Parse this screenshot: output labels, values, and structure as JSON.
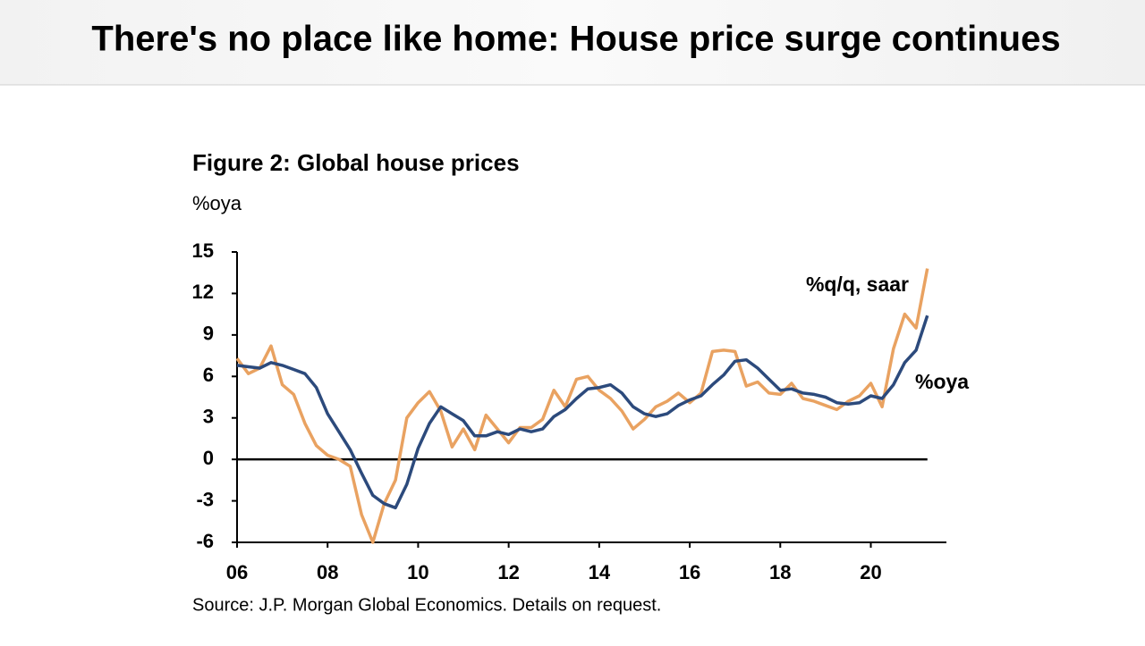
{
  "page_title": "There's no place like home: House price surge continues",
  "chart_data": {
    "type": "line",
    "title": "Figure 2: Global house prices",
    "ylabel": "%oya",
    "source": "Source: J.P. Morgan Global Economics. Details on request.",
    "x": [
      2006,
      2006.25,
      2006.5,
      2006.75,
      2007,
      2007.25,
      2007.5,
      2007.75,
      2008,
      2008.25,
      2008.5,
      2008.75,
      2009,
      2009.25,
      2009.5,
      2009.75,
      2010,
      2010.25,
      2010.5,
      2010.75,
      2011,
      2011.25,
      2011.5,
      2011.75,
      2012,
      2012.25,
      2012.5,
      2012.75,
      2013,
      2013.25,
      2013.5,
      2013.75,
      2014,
      2014.25,
      2014.5,
      2014.75,
      2015,
      2015.25,
      2015.5,
      2015.75,
      2016,
      2016.25,
      2016.5,
      2016.75,
      2017,
      2017.25,
      2017.5,
      2017.75,
      2018,
      2018.25,
      2018.5,
      2018.75,
      2019,
      2019.25,
      2019.5,
      2019.75,
      2020,
      2020.25,
      2020.5,
      2020.75,
      2021,
      2021.25
    ],
    "series": [
      {
        "name": "%oya",
        "color": "#2c4a7c",
        "values": [
          6.8,
          6.7,
          6.6,
          7.0,
          6.8,
          6.5,
          6.2,
          5.2,
          3.3,
          2.0,
          0.7,
          -1.0,
          -2.6,
          -3.2,
          -3.5,
          -1.8,
          0.8,
          2.6,
          3.8,
          3.3,
          2.8,
          1.7,
          1.7,
          2.0,
          1.8,
          2.2,
          2.0,
          2.2,
          3.1,
          3.6,
          4.4,
          5.1,
          5.2,
          5.4,
          4.8,
          3.8,
          3.3,
          3.1,
          3.3,
          3.9,
          4.3,
          4.6,
          5.4,
          6.1,
          7.1,
          7.2,
          6.6,
          5.8,
          5.0,
          5.1,
          4.8,
          4.7,
          4.5,
          4.1,
          4.0,
          4.1,
          4.6,
          4.4,
          5.4,
          7.0,
          7.9,
          10.4
        ]
      },
      {
        "name": "%q/q, saar",
        "color": "#e9a261",
        "values": [
          7.3,
          6.2,
          6.6,
          8.2,
          5.4,
          4.7,
          2.6,
          1.0,
          0.3,
          0.0,
          -0.5,
          -4.0,
          -6.0,
          -3.2,
          -1.5,
          3.0,
          4.1,
          4.9,
          3.5,
          0.9,
          2.2,
          0.7,
          3.2,
          2.2,
          1.2,
          2.3,
          2.3,
          2.9,
          5.0,
          3.8,
          5.8,
          6.0,
          5.0,
          4.4,
          3.5,
          2.2,
          2.9,
          3.8,
          4.2,
          4.8,
          4.1,
          4.8,
          7.8,
          7.9,
          7.8,
          5.3,
          5.6,
          4.8,
          4.7,
          5.5,
          4.4,
          4.2,
          3.9,
          3.6,
          4.2,
          4.6,
          5.5,
          3.8,
          8.0,
          10.5,
          9.5,
          13.8
        ]
      }
    ],
    "xlim": [
      2006,
      2021.67
    ],
    "xticks": [
      {
        "value": 2006,
        "label": "06"
      },
      {
        "value": 2008,
        "label": "08"
      },
      {
        "value": 2010,
        "label": "10"
      },
      {
        "value": 2012,
        "label": "12"
      },
      {
        "value": 2014,
        "label": "14"
      },
      {
        "value": 2016,
        "label": "16"
      },
      {
        "value": 2018,
        "label": "18"
      },
      {
        "value": 2020,
        "label": "20"
      }
    ],
    "ylim": [
      -6,
      15
    ],
    "yticks": [
      -6,
      -3,
      0,
      3,
      6,
      9,
      12,
      15
    ],
    "zero_line": true,
    "grid": false
  }
}
